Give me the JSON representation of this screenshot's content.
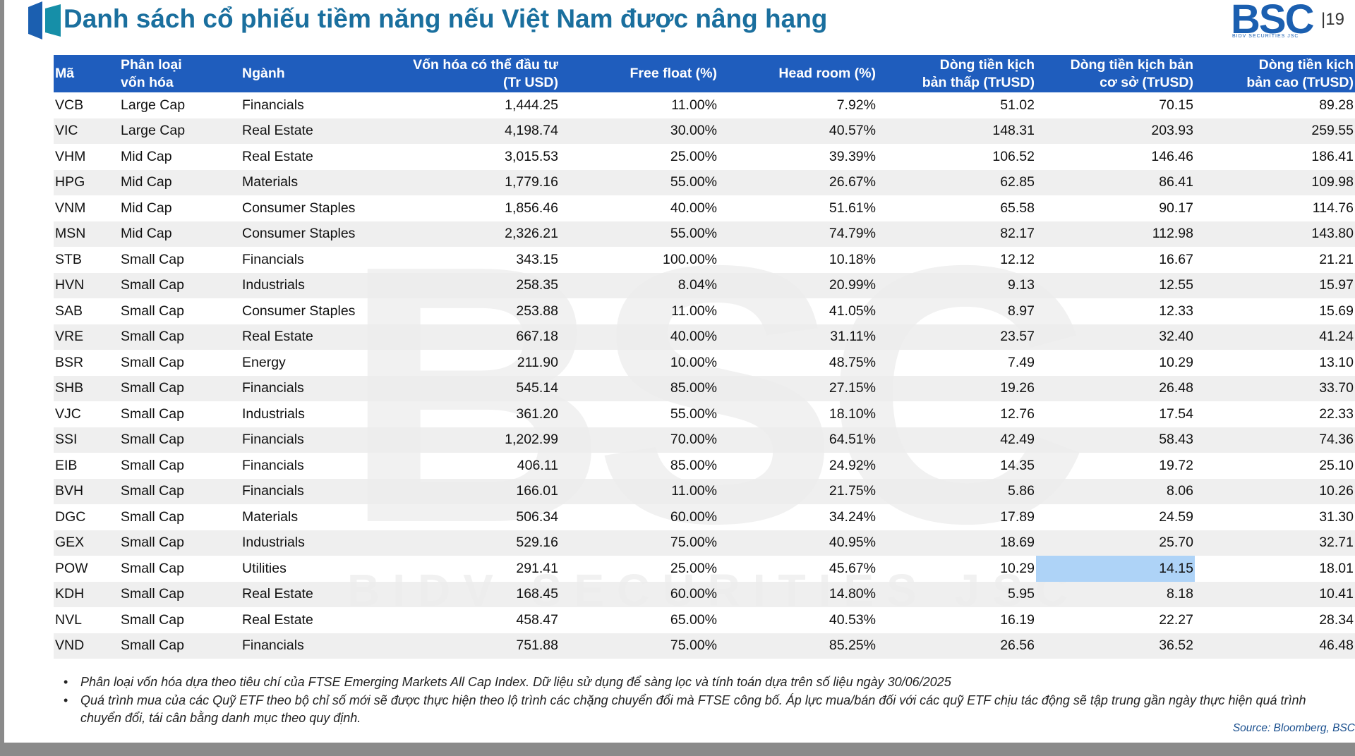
{
  "header": {
    "title": "Danh sách cổ phiếu tiềm năng nếu Việt Nam được nâng hạng",
    "logo": "BSC",
    "logo_sub": "BIDV SECURITIES JSC",
    "page": "19"
  },
  "watermark": {
    "logo": "BSC",
    "text": "BIDV SECURITIES JSC"
  },
  "table": {
    "headers": [
      [
        "Mã"
      ],
      [
        "Phân loại",
        "vốn hóa"
      ],
      [
        "Ngành"
      ],
      [
        "Vốn hóa có thể đầu tư",
        "(Tr USD)"
      ],
      [
        "Free float (%)"
      ],
      [
        "Head room (%)"
      ],
      [
        "Dòng tiền kịch",
        "bản thấp (TrUSD)"
      ],
      [
        "Dòng tiền kịch bản",
        "cơ sở (TrUSD)"
      ],
      [
        "Dòng tiền kịch",
        "bản cao (TrUSD)"
      ]
    ],
    "rows": [
      [
        "VCB",
        "Large Cap",
        "Financials",
        "1,444.25",
        "11.00%",
        "7.92%",
        "51.02",
        "70.15",
        "89.28"
      ],
      [
        "VIC",
        "Large Cap",
        "Real Estate",
        "4,198.74",
        "30.00%",
        "40.57%",
        "148.31",
        "203.93",
        "259.55"
      ],
      [
        "VHM",
        "Mid Cap",
        "Real Estate",
        "3,015.53",
        "25.00%",
        "39.39%",
        "106.52",
        "146.46",
        "186.41"
      ],
      [
        "HPG",
        "Mid Cap",
        "Materials",
        "1,779.16",
        "55.00%",
        "26.67%",
        "62.85",
        "86.41",
        "109.98"
      ],
      [
        "VNM",
        "Mid Cap",
        "Consumer Staples",
        "1,856.46",
        "40.00%",
        "51.61%",
        "65.58",
        "90.17",
        "114.76"
      ],
      [
        "MSN",
        "Mid Cap",
        "Consumer Staples",
        "2,326.21",
        "55.00%",
        "74.79%",
        "82.17",
        "112.98",
        "143.80"
      ],
      [
        "STB",
        "Small Cap",
        "Financials",
        "343.15",
        "100.00%",
        "10.18%",
        "12.12",
        "16.67",
        "21.21"
      ],
      [
        "HVN",
        "Small Cap",
        "Industrials",
        "258.35",
        "8.04%",
        "20.99%",
        "9.13",
        "12.55",
        "15.97"
      ],
      [
        "SAB",
        "Small Cap",
        "Consumer Staples",
        "253.88",
        "11.00%",
        "41.05%",
        "8.97",
        "12.33",
        "15.69"
      ],
      [
        "VRE",
        "Small Cap",
        "Real Estate",
        "667.18",
        "40.00%",
        "31.11%",
        "23.57",
        "32.40",
        "41.24"
      ],
      [
        "BSR",
        "Small Cap",
        "Energy",
        "211.90",
        "10.00%",
        "48.75%",
        "7.49",
        "10.29",
        "13.10"
      ],
      [
        "SHB",
        "Small Cap",
        "Financials",
        "545.14",
        "85.00%",
        "27.15%",
        "19.26",
        "26.48",
        "33.70"
      ],
      [
        "VJC",
        "Small Cap",
        "Industrials",
        "361.20",
        "55.00%",
        "18.10%",
        "12.76",
        "17.54",
        "22.33"
      ],
      [
        "SSI",
        "Small Cap",
        "Financials",
        "1,202.99",
        "70.00%",
        "64.51%",
        "42.49",
        "58.43",
        "74.36"
      ],
      [
        "EIB",
        "Small Cap",
        "Financials",
        "406.11",
        "85.00%",
        "24.92%",
        "14.35",
        "19.72",
        "25.10"
      ],
      [
        "BVH",
        "Small Cap",
        "Financials",
        "166.01",
        "11.00%",
        "21.75%",
        "5.86",
        "8.06",
        "10.26"
      ],
      [
        "DGC",
        "Small Cap",
        "Materials",
        "506.34",
        "60.00%",
        "34.24%",
        "17.89",
        "24.59",
        "31.30"
      ],
      [
        "GEX",
        "Small Cap",
        "Industrials",
        "529.16",
        "75.00%",
        "40.95%",
        "18.69",
        "25.70",
        "32.71"
      ],
      [
        "POW",
        "Small Cap",
        "Utilities",
        "291.41",
        "25.00%",
        "45.67%",
        "10.29",
        "14.15",
        "18.01"
      ],
      [
        "KDH",
        "Small Cap",
        "Real Estate",
        "168.45",
        "60.00%",
        "14.80%",
        "5.95",
        "8.18",
        "10.41"
      ],
      [
        "NVL",
        "Small Cap",
        "Real Estate",
        "458.47",
        "65.00%",
        "40.53%",
        "16.19",
        "22.27",
        "28.34"
      ],
      [
        "VND",
        "Small Cap",
        "Financials",
        "751.88",
        "75.00%",
        "85.25%",
        "26.56",
        "36.52",
        "46.48"
      ]
    ]
  },
  "notes": [
    "Phân loại vốn hóa dựa theo tiêu chí của FTSE Emerging Markets All Cap Index. Dữ liệu sử dụng để sàng lọc và tính toán dựa trên số liệu ngày 30/06/2025",
    "Quá trình mua của các Quỹ ETF theo bộ chỉ số mới sẽ được thực hiện theo lộ trình các chặng chuyển đổi mà FTSE công bố. Áp lực mua/bán đối với các quỹ ETF chịu tác động sẽ tập trung gần ngày thực hiện quá trình chuyển đổi, tái cân bằng danh mục theo quy định."
  ],
  "source": "Source: Bloomberg, BSC"
}
